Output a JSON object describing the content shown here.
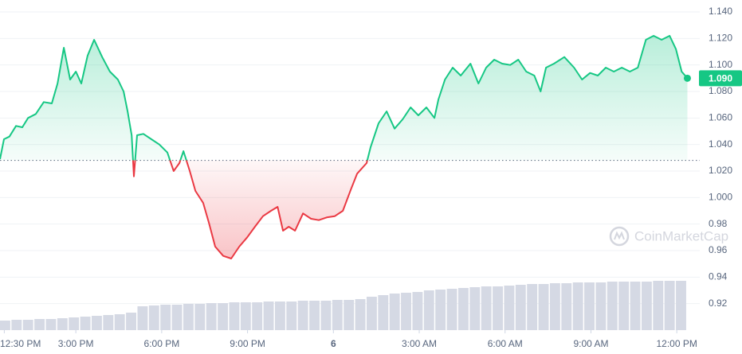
{
  "chart_data": {
    "type": "line",
    "series": [
      {
        "name": "Price",
        "color": "#16c784",
        "down_color": "#ea3943",
        "x": [
          12.35,
          12.49,
          12.68,
          12.91,
          13.13,
          13.33,
          13.6,
          13.88,
          14.16,
          14.36,
          14.58,
          14.8,
          15.0,
          15.19,
          15.41,
          15.64,
          15.92,
          16.19,
          16.47,
          16.67,
          16.81,
          16.95,
          17.03,
          17.14,
          17.36,
          17.64,
          17.92,
          18.2,
          18.42,
          18.62,
          18.76,
          18.98,
          19.18,
          19.45,
          19.65,
          19.87,
          20.15,
          20.43,
          20.71,
          20.99,
          21.26,
          21.54,
          21.82,
          22.05,
          22.24,
          22.44,
          22.66,
          22.94,
          23.22,
          23.49,
          23.77,
          24.05,
          24.33,
          24.61,
          24.83,
          25.16,
          25.3,
          25.58,
          25.86,
          26.14,
          26.42,
          26.7,
          26.97,
          27.25,
          27.53,
          27.67,
          27.9,
          28.17,
          28.45,
          28.79,
          29.07,
          29.34,
          29.62,
          29.9,
          30.18,
          30.46,
          30.74,
          31.02,
          31.24,
          31.43,
          31.71,
          32.07,
          32.41,
          32.69,
          32.97,
          33.24,
          33.52,
          33.8,
          34.08,
          34.36,
          34.64,
          34.92,
          35.19,
          35.47,
          35.75,
          35.97,
          36.17,
          36.37
        ],
        "values": [
          1.029,
          1.044,
          1.046,
          1.054,
          1.053,
          1.06,
          1.063,
          1.072,
          1.071,
          1.086,
          1.113,
          1.089,
          1.095,
          1.086,
          1.107,
          1.119,
          1.106,
          1.095,
          1.089,
          1.08,
          1.065,
          1.047,
          1.016,
          1.047,
          1.048,
          1.044,
          1.04,
          1.034,
          1.02,
          1.026,
          1.035,
          1.02,
          1.005,
          0.996,
          0.981,
          0.963,
          0.956,
          0.954,
          0.963,
          0.97,
          0.978,
          0.986,
          0.99,
          0.993,
          0.975,
          0.978,
          0.975,
          0.988,
          0.984,
          0.983,
          0.985,
          0.986,
          0.99,
          1.006,
          1.018,
          1.026,
          1.038,
          1.056,
          1.065,
          1.052,
          1.059,
          1.068,
          1.062,
          1.068,
          1.06,
          1.074,
          1.089,
          1.098,
          1.092,
          1.101,
          1.086,
          1.098,
          1.104,
          1.101,
          1.1,
          1.104,
          1.095,
          1.092,
          1.08,
          1.098,
          1.101,
          1.106,
          1.098,
          1.089,
          1.094,
          1.092,
          1.098,
          1.095,
          1.098,
          1.095,
          1.098,
          1.119,
          1.122,
          1.119,
          1.122,
          1.112,
          1.095,
          1.09
        ]
      }
    ],
    "baseline": 1.028,
    "current_price": {
      "value": 1.09,
      "label": "1.090"
    },
    "volume": {
      "values": [
        12,
        13,
        13,
        14,
        14,
        15,
        16,
        17,
        18,
        19,
        20,
        22,
        30,
        31,
        32,
        32,
        33,
        33,
        34,
        34,
        35,
        35,
        35,
        36,
        36,
        36,
        37,
        37,
        37,
        38,
        38,
        39,
        42,
        44,
        46,
        47,
        48,
        50,
        51,
        52,
        53,
        54,
        55,
        55,
        56,
        57,
        58,
        58,
        59,
        59,
        60,
        60,
        60,
        61,
        61,
        61,
        61,
        62,
        62,
        62
      ],
      "lim": [
        0,
        100
      ],
      "color": "#d5d9e4"
    },
    "xlim": [
      12.35,
      36.58
    ],
    "ylim": [
      0.9,
      1.149
    ],
    "xticks": [
      {
        "value": 12.5,
        "label": "12:30 PM"
      },
      {
        "value": 15,
        "label": "3:00 PM"
      },
      {
        "value": 18,
        "label": "6:00 PM"
      },
      {
        "value": 21,
        "label": "9:00 PM"
      },
      {
        "value": 24,
        "label": "6"
      },
      {
        "value": 27,
        "label": "3:00 AM"
      },
      {
        "value": 30,
        "label": "6:00 AM"
      },
      {
        "value": 33,
        "label": "9:00 AM"
      },
      {
        "value": 36,
        "label": "12:00 PM"
      }
    ],
    "yticks": [
      0.92,
      0.94,
      0.96,
      0.98,
      {
        "value": 1.0,
        "label": "1.000"
      },
      {
        "value": 1.02,
        "label": "1.020"
      },
      {
        "value": 1.04,
        "label": "1.040"
      },
      {
        "value": 1.06,
        "label": "1.060"
      },
      {
        "value": 1.08,
        "label": "1.080"
      },
      {
        "value": 1.1,
        "label": "1.100"
      },
      {
        "value": 1.12,
        "label": "1.120"
      },
      {
        "value": 1.14,
        "label": "1.140"
      }
    ],
    "grid": true,
    "watermark": "CoinMarketCap"
  }
}
